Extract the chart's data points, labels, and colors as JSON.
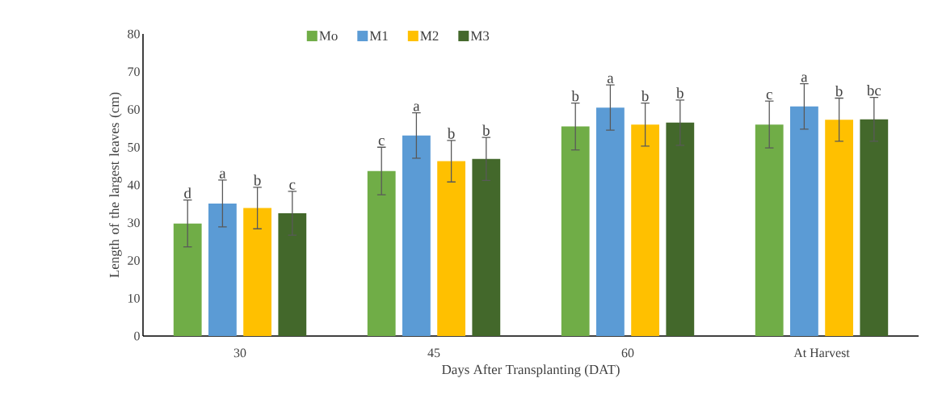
{
  "chart_data": {
    "type": "bar",
    "xlabel": "Days After Transplanting (DAT)",
    "ylabel": "Length of the largest leaves (cm)",
    "categories": [
      "30",
      "45",
      "60",
      "At Harvest"
    ],
    "series": [
      {
        "name": "Mo",
        "color": "#70ad47",
        "values": [
          29.8,
          43.7,
          55.5,
          56.0
        ],
        "errors": [
          6.2,
          6.3,
          6.2,
          6.2
        ],
        "value_labels": [
          "d",
          "c",
          "b",
          "c"
        ]
      },
      {
        "name": "M1",
        "color": "#5b9bd5",
        "values": [
          35.1,
          53.1,
          60.5,
          60.8
        ],
        "errors": [
          6.2,
          6.0,
          6.0,
          6.0
        ],
        "value_labels": [
          "a",
          "a",
          "a",
          "a"
        ]
      },
      {
        "name": "M2",
        "color": "#ffc000",
        "values": [
          33.9,
          46.3,
          56.0,
          57.3
        ],
        "errors": [
          5.5,
          5.5,
          5.7,
          5.7
        ],
        "value_labels": [
          "b",
          "b",
          "b",
          "b"
        ]
      },
      {
        "name": "M3",
        "color": "#43682b",
        "values": [
          32.5,
          46.9,
          56.5,
          57.4
        ],
        "errors": [
          5.8,
          5.7,
          6.0,
          5.8
        ],
        "value_labels": [
          "c",
          "b",
          "b",
          "bc"
        ]
      }
    ],
    "ylim": [
      0,
      80
    ],
    "yticks": [
      0,
      10,
      20,
      30,
      40,
      50,
      60,
      70,
      80
    ],
    "grid": false,
    "legend": "top"
  }
}
